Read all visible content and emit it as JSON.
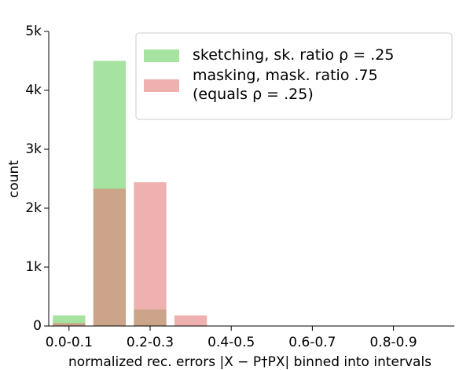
{
  "chart_data": {
    "type": "bar",
    "categories": [
      "0.0-0.1",
      null,
      "0.2-0.3",
      null,
      "0.4-0.5",
      null,
      "0.6-0.7",
      null,
      "0.8-0.9",
      null
    ],
    "series": [
      {
        "name": "sketching, sk. ratio ρ = .25",
        "color": "#a6e2a0",
        "values": [
          180,
          4500,
          280,
          0,
          0,
          0,
          0,
          0,
          0,
          0
        ]
      },
      {
        "name": "masking, mask. ratio .75\n(equals ρ = .25)",
        "color": "#e57c7c",
        "values": [
          50,
          2330,
          2440,
          180,
          0,
          0,
          0,
          0,
          0,
          0
        ]
      }
    ],
    "ylabel": "count",
    "xlabel": "normalized rec. errors |X − P†PX| binned into intervals",
    "ylim": [
      0,
      5000
    ],
    "yticks": [
      0,
      {
        "value": 1000,
        "label": "1k"
      },
      {
        "value": 2000,
        "label": "2k"
      },
      {
        "value": 3000,
        "label": "3k"
      },
      {
        "value": 4000,
        "label": "4k"
      },
      {
        "value": 5000,
        "label": "5k"
      }
    ],
    "legend": "upper right"
  }
}
